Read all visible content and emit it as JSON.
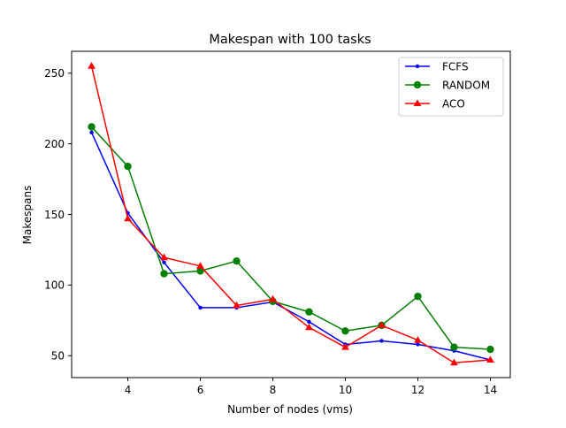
{
  "chart_data": {
    "type": "line",
    "title": "Makespan with 100 tasks",
    "xlabel": "Number of nodes (vms)",
    "ylabel": "Makespans",
    "x": [
      3,
      4,
      5,
      6,
      7,
      8,
      9,
      10,
      11,
      12,
      13,
      14
    ],
    "xlim": [
      2.45,
      14.55
    ],
    "ylim": [
      34.5,
      265.5
    ],
    "xticks": [
      4,
      6,
      8,
      10,
      12,
      14
    ],
    "yticks": [
      50,
      100,
      150,
      200,
      250
    ],
    "grid": false,
    "legend_position": "top-right",
    "series": [
      {
        "name": "FCFS",
        "color": "#0000ff",
        "marker": "dot",
        "values": [
          208,
          151,
          116,
          84,
          84,
          88,
          74,
          58,
          60.5,
          58,
          53.5,
          47
        ]
      },
      {
        "name": "RANDOM",
        "color": "#008000",
        "marker": "circle",
        "values": [
          212,
          184,
          108,
          110,
          117,
          88.5,
          81,
          67.5,
          71.5,
          92,
          56,
          54.5
        ]
      },
      {
        "name": "ACO",
        "color": "#ff0000",
        "marker": "triangle",
        "values": [
          255,
          147,
          119.5,
          113.5,
          85.5,
          90,
          70,
          56,
          71.5,
          61,
          45,
          47
        ]
      }
    ]
  }
}
